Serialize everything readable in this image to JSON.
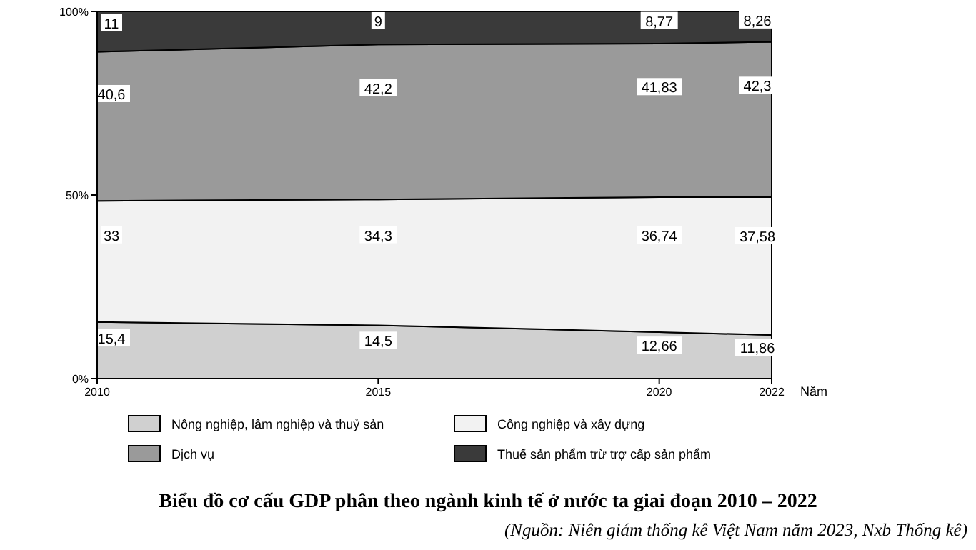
{
  "chart_data": {
    "type": "area",
    "stacked": true,
    "title": "Biểu đồ cơ cấu GDP phân theo ngành kinh tế ở nước ta giai đoạn 2010 – 2022",
    "xlabel": "Năm",
    "annotations": [
      "(Nguồn: Niên giám thống kê Việt Nam năm 2023, Nxb Thống kê)"
    ],
    "x": [
      2010,
      2015,
      2020,
      2022
    ],
    "xlim": [
      2010,
      2022
    ],
    "xticks": [
      2010,
      2015,
      2020,
      2022
    ],
    "ylim": [
      0,
      100
    ],
    "yticks": [
      {
        "value": 0,
        "label": "0%"
      },
      {
        "value": 50,
        "label": "50%"
      },
      {
        "value": 100,
        "label": "100%"
      }
    ],
    "legend": "bottom",
    "grid": false,
    "series": [
      {
        "name": "Nông nghiệp, lâm nghiệp và thuỷ sản",
        "color": "#d0d0d0",
        "values": [
          15.4,
          14.5,
          12.66,
          11.86
        ],
        "value_labels": [
          "15,4",
          "14,5",
          "12,66",
          "11,86"
        ]
      },
      {
        "name": "Công nghiệp và xây dựng",
        "color": "#f2f2f2",
        "values": [
          33,
          34.3,
          36.74,
          37.58
        ],
        "value_labels": [
          "33",
          "34,3",
          "36,74",
          "37,58"
        ]
      },
      {
        "name": "Dịch vụ",
        "color": "#9a9a9a",
        "values": [
          40.6,
          42.2,
          41.83,
          42.3
        ],
        "value_labels": [
          "40,6",
          "42,2",
          "41,83",
          "42,3"
        ]
      },
      {
        "name": "Thuế sản phẩm trừ trợ cấp sản phẩm",
        "color": "#3a3a3a",
        "values": [
          11,
          9,
          8.77,
          8.26
        ],
        "value_labels": [
          "11",
          "9",
          "8,77",
          "8,26"
        ]
      }
    ]
  }
}
